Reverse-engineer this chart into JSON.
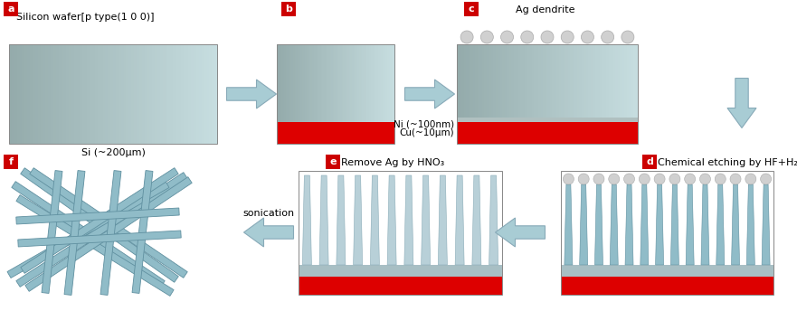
{
  "bg_color": "#ffffff",
  "cu_color": "#dd0000",
  "arrow_color": "#a8ccd4",
  "arrow_edge": "#88aab8",
  "nanowire_color": "#90bcc8",
  "nanowire_edge": "#6090a0",
  "ag_ball_color": "#d0d0d0",
  "ag_ball_edge": "#aaaaaa",
  "si_dark": [
    0.58,
    0.67,
    0.67
  ],
  "si_light": [
    0.78,
    0.87,
    0.88
  ],
  "label_bg": "#cc0000",
  "nw_base_color": "#a8bfc4"
}
